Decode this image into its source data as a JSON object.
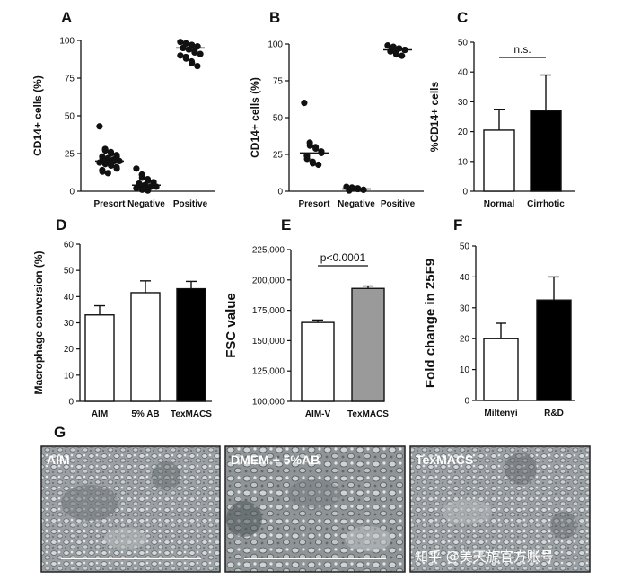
{
  "chart_data": [
    {
      "panel": "A",
      "type": "scatter",
      "ylabel": "CD14+ cells (%)",
      "ylim": [
        0,
        100
      ],
      "yticks": [
        0,
        25,
        50,
        75,
        100
      ],
      "yticklabels": [
        "0",
        "25",
        "50",
        "75",
        "100"
      ],
      "categories": [
        "Presort",
        "Negative",
        "Positive"
      ],
      "points": [
        [
          43,
          28,
          27,
          26,
          25,
          24,
          23,
          23,
          22,
          22,
          21,
          21,
          20,
          20,
          19,
          19,
          18,
          18,
          17,
          16,
          15,
          14,
          13,
          12
        ],
        [
          15,
          11,
          9,
          8,
          7,
          6,
          6,
          5,
          5,
          4,
          4,
          3,
          3,
          3,
          2,
          2,
          1,
          1,
          0.5
        ],
        [
          99,
          98,
          98,
          97,
          97,
          96,
          96,
          95,
          95,
          94,
          94,
          93,
          92,
          91,
          90,
          89,
          88,
          86,
          85,
          83
        ]
      ],
      "mean": [
        20,
        4,
        95
      ]
    },
    {
      "panel": "B",
      "type": "scatter",
      "ylabel": "CD14+ cells (%)",
      "ylim": [
        0,
        100
      ],
      "yticks": [
        0,
        25,
        50,
        75,
        100
      ],
      "yticklabels": [
        "0",
        "25",
        "50",
        "75",
        "100"
      ],
      "categories": [
        "Presort",
        "Negative",
        "Positive"
      ],
      "points": [
        [
          60,
          33,
          31,
          30,
          29,
          27,
          26,
          24,
          22,
          20,
          19,
          18
        ],
        [
          3,
          2.5,
          2,
          2,
          1.5,
          1,
          1,
          0.5
        ],
        [
          99,
          98,
          98,
          97,
          97,
          96,
          96,
          95,
          95,
          94,
          93,
          92
        ]
      ],
      "mean": [
        26,
        1.5,
        96
      ]
    },
    {
      "panel": "C",
      "type": "bar",
      "ylabel": "%CD14+ cells",
      "ylim": [
        0,
        50
      ],
      "yticks": [
        0,
        10,
        20,
        30,
        40,
        50
      ],
      "yticklabels": [
        "0",
        "10",
        "20",
        "30",
        "40",
        "50"
      ],
      "categories": [
        "Normal",
        "Cirrhotic"
      ],
      "values": [
        20.5,
        27
      ],
      "errors": [
        7,
        12
      ],
      "colors": [
        "#ffffff",
        "#000000"
      ],
      "annotation": "n.s."
    },
    {
      "panel": "D",
      "type": "bar",
      "ylabel": "Macrophage conversion (%)",
      "ylim": [
        0,
        60
      ],
      "yticks": [
        0,
        10,
        20,
        30,
        40,
        50,
        60
      ],
      "yticklabels": [
        "0",
        "10",
        "20",
        "30",
        "40",
        "50",
        "60"
      ],
      "categories": [
        "AIM",
        "5% AB",
        "TexMACS"
      ],
      "values": [
        33,
        41.5,
        43
      ],
      "errors": [
        3.5,
        4.5,
        2.8
      ],
      "colors": [
        "#ffffff",
        "#ffffff",
        "#000000"
      ]
    },
    {
      "panel": "E",
      "type": "bar",
      "ylabel": "FSC value",
      "ylim": [
        100000,
        225000
      ],
      "yticks": [
        100000,
        125000,
        150000,
        175000,
        200000,
        225000
      ],
      "yticklabels": [
        "100,000",
        "125,000",
        "150,000",
        "175,000",
        "200,000",
        "225,000"
      ],
      "categories": [
        "AIM-V",
        "TexMACS"
      ],
      "values": [
        165000,
        193000
      ],
      "errors": [
        2000,
        2000
      ],
      "colors": [
        "#ffffff",
        "#9a9a9a"
      ],
      "annotation": "p<0.0001"
    },
    {
      "panel": "F",
      "type": "bar",
      "ylabel": "Fold change in 25F9",
      "ylim": [
        0,
        50
      ],
      "yticks": [
        0,
        10,
        20,
        30,
        40,
        50
      ],
      "yticklabels": [
        "0",
        "10",
        "20",
        "30",
        "40",
        "50"
      ],
      "categories": [
        "Miltenyi",
        "R&D"
      ],
      "values": [
        20,
        32.5
      ],
      "errors": [
        5,
        7.5
      ],
      "colors": [
        "#ffffff",
        "#000000"
      ]
    }
  ],
  "panel_g": {
    "letter": "G",
    "images": [
      {
        "label": "AIM"
      },
      {
        "label": "DMEM + 5%AB"
      },
      {
        "label": "TexMACS"
      }
    ],
    "watermark": "知乎 @美天旎官方账号"
  }
}
